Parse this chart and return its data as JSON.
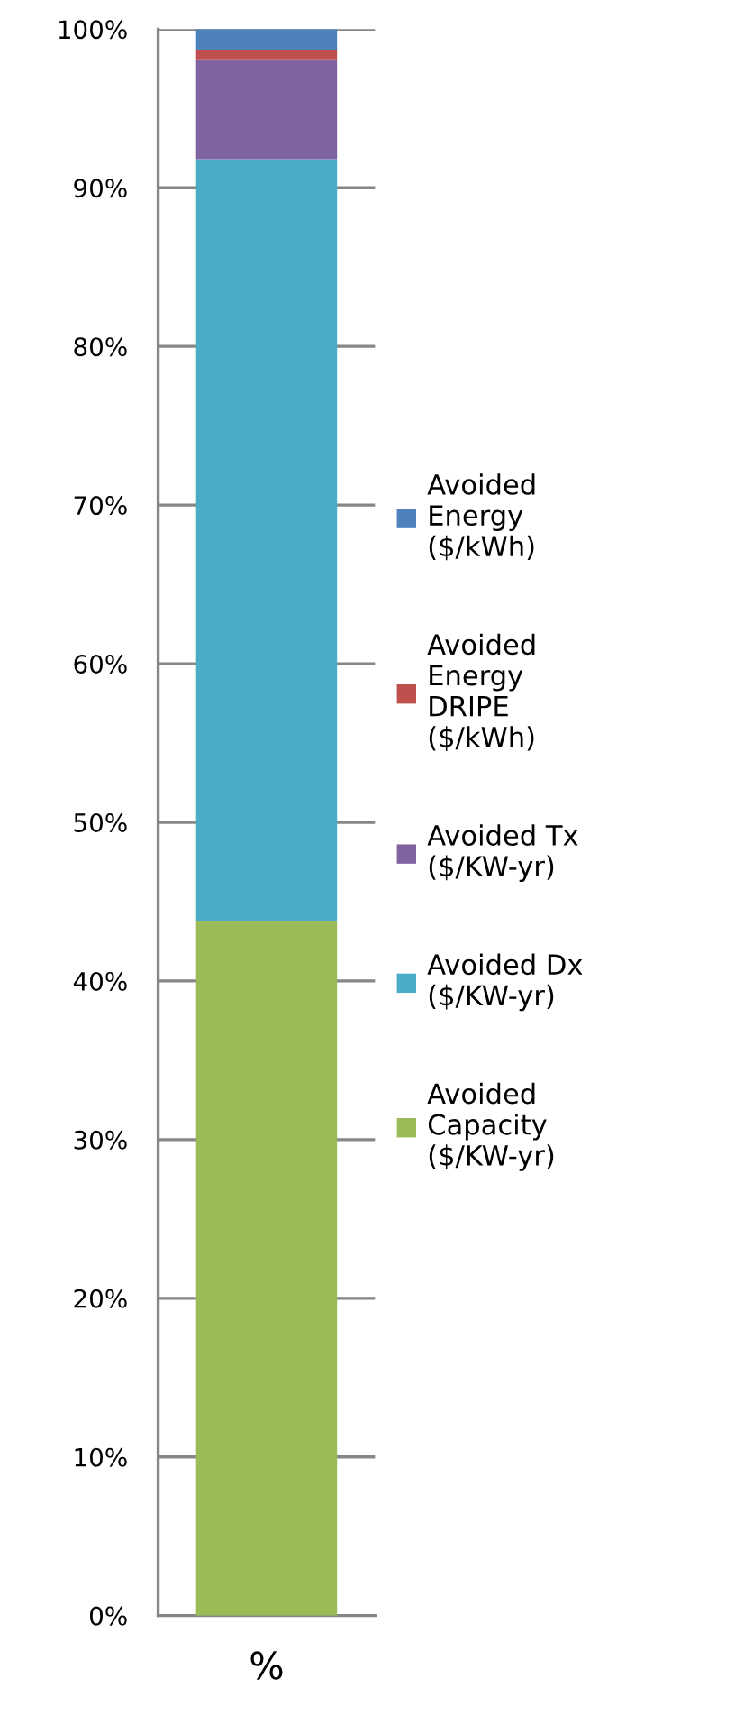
{
  "chart_data": {
    "type": "bar",
    "stacked": true,
    "categories": [
      "%"
    ],
    "series": [
      {
        "name": "Avoided\nCapacity\n($/KW-yr)",
        "color": "#9bbb59",
        "values": [
          43.8
        ]
      },
      {
        "name": "Avoided Dx\n($/KW-yr)",
        "color": "#4bacc6",
        "values": [
          48.0
        ]
      },
      {
        "name": "Avoided Tx\n($/KW-yr)",
        "color": "#8064a2",
        "values": [
          6.3
        ]
      },
      {
        "name": "Avoided\nEnergy\nDRIPE\n($/kWh)",
        "color": "#c0504d",
        "values": [
          0.6
        ]
      },
      {
        "name": "Avoided\nEnergy\n($/kWh)",
        "color": "#4f81bd",
        "values": [
          1.3
        ]
      }
    ],
    "ylim": [
      0,
      100
    ],
    "yticks": [
      {
        "value": 0,
        "label": "0%"
      },
      {
        "value": 10,
        "label": "10%"
      },
      {
        "value": 20,
        "label": "20%"
      },
      {
        "value": 30,
        "label": "30%"
      },
      {
        "value": 40,
        "label": "40%"
      },
      {
        "value": 50,
        "label": "50%"
      },
      {
        "value": 60,
        "label": "60%"
      },
      {
        "value": 70,
        "label": "70%"
      },
      {
        "value": 80,
        "label": "80%"
      },
      {
        "value": 90,
        "label": "90%"
      },
      {
        "value": 100,
        "label": "100%"
      }
    ],
    "grid": "y",
    "legend": "right"
  }
}
